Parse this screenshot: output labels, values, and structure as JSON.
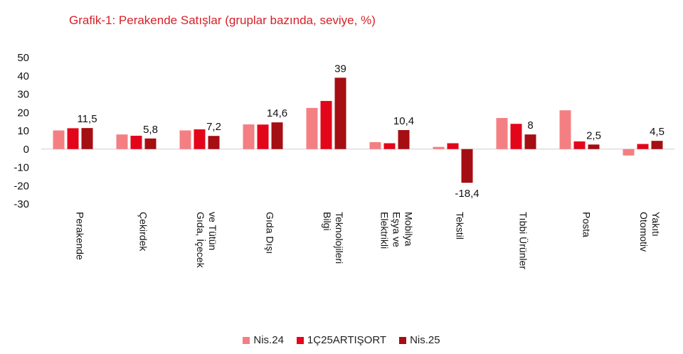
{
  "chart_data": {
    "type": "bar",
    "title": "Grafik-1: Perakende Satışlar (gruplar bazında, seviye, %)",
    "categories": [
      "Perakende",
      "Çekirdek",
      "Gıda, İçecek ve Tütün",
      "Gıda Dışı",
      "Bilgi Teknolojileri",
      "Elektrikli Eşya ve Mobilya",
      "Tekstil",
      "Tıbbi Ürünler",
      "Posta",
      "Otomotiv Yakıtı"
    ],
    "series": [
      {
        "name": "Nis.24",
        "color": "#f47f82",
        "values": [
          10.2,
          8.0,
          10.2,
          13.5,
          22.5,
          3.8,
          1.2,
          17.0,
          21.2,
          -3.5
        ]
      },
      {
        "name": "1Ç25ARTIŞORT",
        "color": "#e3061b",
        "values": [
          11.4,
          7.3,
          10.8,
          13.4,
          26.3,
          3.2,
          3.2,
          13.8,
          4.2,
          2.8
        ]
      },
      {
        "name": "Nis.25",
        "color": "#a50e12",
        "values": [
          11.5,
          5.8,
          7.2,
          14.6,
          39,
          10.4,
          -18.4,
          8,
          2.5,
          4.5
        ],
        "data_labels": [
          "11,5",
          "5,8",
          "7,2",
          "14,6",
          "39",
          "10,4",
          "-18,4",
          "8",
          "2,5",
          "4,5"
        ]
      }
    ],
    "ylim": [
      -30,
      50
    ],
    "yticks": [
      50,
      40,
      30,
      20,
      10,
      0,
      -10,
      -20,
      -30
    ],
    "xlabel": "",
    "ylabel": "",
    "grid": false,
    "legend_position": "bottom"
  }
}
